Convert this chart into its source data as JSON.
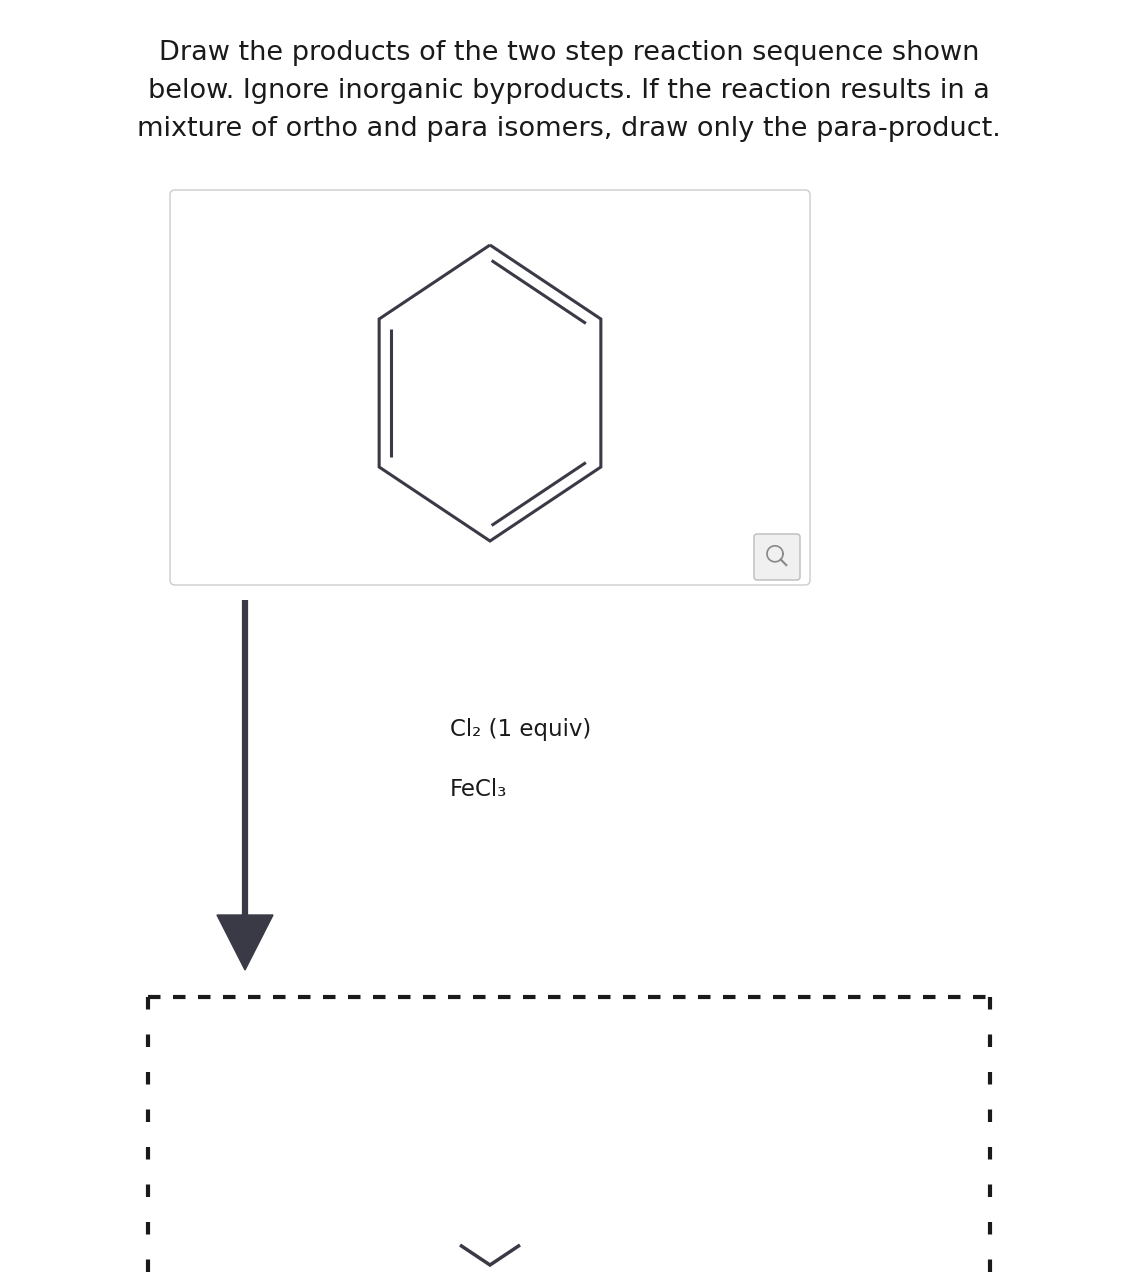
{
  "title_lines": [
    "Draw the products of the two step reaction sequence shown",
    "below. Ignore inorganic byproducts. If the reaction results in a",
    "mixture of ortho and para isomers, draw only the para-product."
  ],
  "title_fontsize": 19.5,
  "title_color": "#1a1a1a",
  "bg_color": "#ffffff",
  "benzene_color": "#3a3a46",
  "benzene_linewidth": 2.2,
  "arrow_color": "#3a3a46",
  "reagent1": "Cl₂ (1 equiv)",
  "reagent2": "FeCl₃",
  "reagent_fontsize": 16.5,
  "reagent_color": "#1a1a1a",
  "dashed_color": "#1a1a1a",
  "box_edge_color": "#cccccc",
  "box_face_color": "#ffffff"
}
